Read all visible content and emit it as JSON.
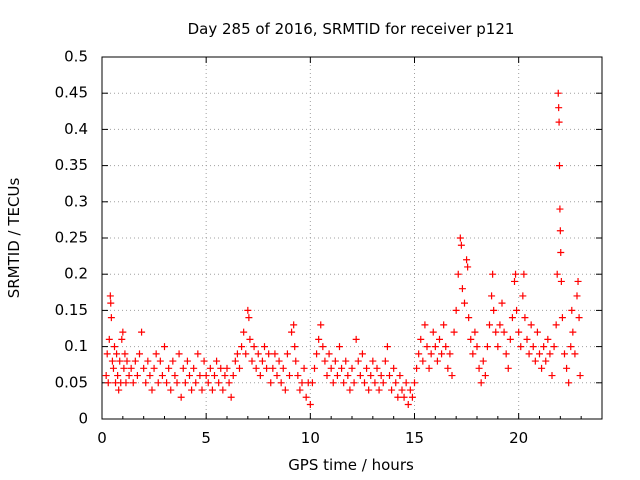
{
  "chart_data": {
    "type": "scatter",
    "title": "Day 285 of 2016, SRMTID for receiver p121",
    "xlabel": "GPS time / hours",
    "ylabel": "SRMTID / TECUs",
    "xlim": [
      0,
      24
    ],
    "ylim": [
      0,
      0.5
    ],
    "xticks": [
      0,
      5,
      10,
      15,
      20
    ],
    "yticks": [
      0,
      0.05,
      0.1,
      0.15,
      0.2,
      0.25,
      0.3,
      0.35,
      0.4,
      0.45,
      0.5
    ],
    "xtick_labels": [
      "0",
      "5",
      "10",
      "15",
      "20"
    ],
    "ytick_labels": [
      "0",
      "0.05",
      "0.1",
      "0.15",
      "0.2",
      "0.25",
      "0.3",
      "0.35",
      "0.4",
      "0.45",
      "0.5"
    ],
    "grid": true,
    "legend": "none",
    "marker_color": "#ff0000",
    "series": [
      {
        "name": "SRMTID",
        "marker": "+",
        "points": [
          [
            0.2,
            0.06
          ],
          [
            0.25,
            0.09
          ],
          [
            0.3,
            0.05
          ],
          [
            0.35,
            0.11
          ],
          [
            0.4,
            0.17
          ],
          [
            0.42,
            0.16
          ],
          [
            0.45,
            0.14
          ],
          [
            0.5,
            0.08
          ],
          [
            0.55,
            0.07
          ],
          [
            0.6,
            0.1
          ],
          [
            0.65,
            0.05
          ],
          [
            0.7,
            0.09
          ],
          [
            0.75,
            0.06
          ],
          [
            0.8,
            0.04
          ],
          [
            0.85,
            0.08
          ],
          [
            0.9,
            0.05
          ],
          [
            0.95,
            0.11
          ],
          [
            1.0,
            0.12
          ],
          [
            1.05,
            0.07
          ],
          [
            1.1,
            0.09
          ],
          [
            1.15,
            0.05
          ],
          [
            1.2,
            0.08
          ],
          [
            1.3,
            0.06
          ],
          [
            1.4,
            0.07
          ],
          [
            1.5,
            0.05
          ],
          [
            1.6,
            0.08
          ],
          [
            1.7,
            0.06
          ],
          [
            1.8,
            0.09
          ],
          [
            1.9,
            0.12
          ],
          [
            2.0,
            0.07
          ],
          [
            2.1,
            0.05
          ],
          [
            2.2,
            0.08
          ],
          [
            2.3,
            0.06
          ],
          [
            2.4,
            0.04
          ],
          [
            2.5,
            0.07
          ],
          [
            2.6,
            0.09
          ],
          [
            2.7,
            0.05
          ],
          [
            2.8,
            0.08
          ],
          [
            2.9,
            0.06
          ],
          [
            3.0,
            0.1
          ],
          [
            3.1,
            0.05
          ],
          [
            3.2,
            0.07
          ],
          [
            3.3,
            0.04
          ],
          [
            3.4,
            0.08
          ],
          [
            3.5,
            0.06
          ],
          [
            3.6,
            0.05
          ],
          [
            3.7,
            0.09
          ],
          [
            3.8,
            0.03
          ],
          [
            3.9,
            0.07
          ],
          [
            4.0,
            0.05
          ],
          [
            4.1,
            0.08
          ],
          [
            4.2,
            0.06
          ],
          [
            4.3,
            0.04
          ],
          [
            4.4,
            0.07
          ],
          [
            4.5,
            0.05
          ],
          [
            4.6,
            0.09
          ],
          [
            4.7,
            0.06
          ],
          [
            4.8,
            0.04
          ],
          [
            4.9,
            0.08
          ],
          [
            5.0,
            0.06
          ],
          [
            5.1,
            0.05
          ],
          [
            5.2,
            0.07
          ],
          [
            5.3,
            0.04
          ],
          [
            5.4,
            0.06
          ],
          [
            5.5,
            0.08
          ],
          [
            5.6,
            0.05
          ],
          [
            5.7,
            0.07
          ],
          [
            5.8,
            0.04
          ],
          [
            5.9,
            0.06
          ],
          [
            6.0,
            0.07
          ],
          [
            6.1,
            0.05
          ],
          [
            6.2,
            0.03
          ],
          [
            6.3,
            0.06
          ],
          [
            6.4,
            0.08
          ],
          [
            6.5,
            0.09
          ],
          [
            6.6,
            0.07
          ],
          [
            6.7,
            0.1
          ],
          [
            6.8,
            0.12
          ],
          [
            6.9,
            0.09
          ],
          [
            7.0,
            0.15
          ],
          [
            7.05,
            0.14
          ],
          [
            7.1,
            0.11
          ],
          [
            7.2,
            0.08
          ],
          [
            7.3,
            0.1
          ],
          [
            7.4,
            0.07
          ],
          [
            7.5,
            0.09
          ],
          [
            7.6,
            0.06
          ],
          [
            7.7,
            0.08
          ],
          [
            7.8,
            0.1
          ],
          [
            7.9,
            0.07
          ],
          [
            8.0,
            0.09
          ],
          [
            8.1,
            0.05
          ],
          [
            8.2,
            0.07
          ],
          [
            8.3,
            0.09
          ],
          [
            8.4,
            0.06
          ],
          [
            8.5,
            0.08
          ],
          [
            8.6,
            0.05
          ],
          [
            8.7,
            0.07
          ],
          [
            8.8,
            0.04
          ],
          [
            8.9,
            0.09
          ],
          [
            9.0,
            0.06
          ],
          [
            9.1,
            0.12
          ],
          [
            9.2,
            0.13
          ],
          [
            9.25,
            0.1
          ],
          [
            9.3,
            0.08
          ],
          [
            9.4,
            0.06
          ],
          [
            9.5,
            0.04
          ],
          [
            9.6,
            0.05
          ],
          [
            9.7,
            0.07
          ],
          [
            9.8,
            0.03
          ],
          [
            9.9,
            0.05
          ],
          [
            10.0,
            0.02
          ],
          [
            10.1,
            0.05
          ],
          [
            10.2,
            0.07
          ],
          [
            10.3,
            0.09
          ],
          [
            10.4,
            0.11
          ],
          [
            10.5,
            0.13
          ],
          [
            10.6,
            0.1
          ],
          [
            10.7,
            0.08
          ],
          [
            10.8,
            0.06
          ],
          [
            10.9,
            0.09
          ],
          [
            11.0,
            0.07
          ],
          [
            11.1,
            0.05
          ],
          [
            11.2,
            0.08
          ],
          [
            11.3,
            0.06
          ],
          [
            11.4,
            0.1
          ],
          [
            11.5,
            0.07
          ],
          [
            11.6,
            0.05
          ],
          [
            11.7,
            0.08
          ],
          [
            11.8,
            0.06
          ],
          [
            11.9,
            0.04
          ],
          [
            12.0,
            0.07
          ],
          [
            12.1,
            0.05
          ],
          [
            12.2,
            0.11
          ],
          [
            12.3,
            0.08
          ],
          [
            12.4,
            0.06
          ],
          [
            12.5,
            0.09
          ],
          [
            12.6,
            0.05
          ],
          [
            12.7,
            0.07
          ],
          [
            12.8,
            0.04
          ],
          [
            12.9,
            0.06
          ],
          [
            13.0,
            0.08
          ],
          [
            13.1,
            0.05
          ],
          [
            13.2,
            0.07
          ],
          [
            13.3,
            0.04
          ],
          [
            13.4,
            0.06
          ],
          [
            13.5,
            0.05
          ],
          [
            13.6,
            0.08
          ],
          [
            13.7,
            0.1
          ],
          [
            13.8,
            0.06
          ],
          [
            13.9,
            0.04
          ],
          [
            14.0,
            0.07
          ],
          [
            14.1,
            0.05
          ],
          [
            14.2,
            0.03
          ],
          [
            14.3,
            0.06
          ],
          [
            14.4,
            0.04
          ],
          [
            14.5,
            0.03
          ],
          [
            14.6,
            0.05
          ],
          [
            14.7,
            0.02
          ],
          [
            14.8,
            0.04
          ],
          [
            14.9,
            0.03
          ],
          [
            15.0,
            0.05
          ],
          [
            15.1,
            0.07
          ],
          [
            15.2,
            0.09
          ],
          [
            15.3,
            0.11
          ],
          [
            15.4,
            0.08
          ],
          [
            15.5,
            0.13
          ],
          [
            15.6,
            0.1
          ],
          [
            15.7,
            0.07
          ],
          [
            15.8,
            0.09
          ],
          [
            15.9,
            0.12
          ],
          [
            16.0,
            0.1
          ],
          [
            16.1,
            0.08
          ],
          [
            16.2,
            0.11
          ],
          [
            16.3,
            0.09
          ],
          [
            16.4,
            0.13
          ],
          [
            16.5,
            0.1
          ],
          [
            16.6,
            0.07
          ],
          [
            16.7,
            0.09
          ],
          [
            16.8,
            0.06
          ],
          [
            16.9,
            0.12
          ],
          [
            17.0,
            0.15
          ],
          [
            17.1,
            0.2
          ],
          [
            17.2,
            0.25
          ],
          [
            17.25,
            0.24
          ],
          [
            17.3,
            0.18
          ],
          [
            17.4,
            0.16
          ],
          [
            17.5,
            0.22
          ],
          [
            17.55,
            0.21
          ],
          [
            17.6,
            0.14
          ],
          [
            17.7,
            0.11
          ],
          [
            17.8,
            0.09
          ],
          [
            17.9,
            0.12
          ],
          [
            18.0,
            0.1
          ],
          [
            18.1,
            0.07
          ],
          [
            18.2,
            0.05
          ],
          [
            18.3,
            0.08
          ],
          [
            18.4,
            0.06
          ],
          [
            18.5,
            0.1
          ],
          [
            18.6,
            0.13
          ],
          [
            18.7,
            0.17
          ],
          [
            18.75,
            0.2
          ],
          [
            18.8,
            0.15
          ],
          [
            18.9,
            0.12
          ],
          [
            19.0,
            0.1
          ],
          [
            19.1,
            0.13
          ],
          [
            19.2,
            0.16
          ],
          [
            19.3,
            0.12
          ],
          [
            19.4,
            0.09
          ],
          [
            19.5,
            0.07
          ],
          [
            19.6,
            0.11
          ],
          [
            19.7,
            0.14
          ],
          [
            19.8,
            0.19
          ],
          [
            19.85,
            0.2
          ],
          [
            19.9,
            0.15
          ],
          [
            20.0,
            0.12
          ],
          [
            20.1,
            0.1
          ],
          [
            20.2,
            0.17
          ],
          [
            20.25,
            0.2
          ],
          [
            20.3,
            0.14
          ],
          [
            20.4,
            0.11
          ],
          [
            20.5,
            0.09
          ],
          [
            20.6,
            0.13
          ],
          [
            20.7,
            0.1
          ],
          [
            20.8,
            0.08
          ],
          [
            20.9,
            0.12
          ],
          [
            21.0,
            0.09
          ],
          [
            21.1,
            0.07
          ],
          [
            21.2,
            0.1
          ],
          [
            21.3,
            0.08
          ],
          [
            21.4,
            0.11
          ],
          [
            21.5,
            0.09
          ],
          [
            21.6,
            0.06
          ],
          [
            21.7,
            0.1
          ],
          [
            21.8,
            0.13
          ],
          [
            21.85,
            0.2
          ],
          [
            21.9,
            0.45
          ],
          [
            21.92,
            0.43
          ],
          [
            21.94,
            0.41
          ],
          [
            21.96,
            0.35
          ],
          [
            21.98,
            0.29
          ],
          [
            22.0,
            0.26
          ],
          [
            22.02,
            0.23
          ],
          [
            22.05,
            0.19
          ],
          [
            22.1,
            0.14
          ],
          [
            22.2,
            0.09
          ],
          [
            22.3,
            0.07
          ],
          [
            22.4,
            0.05
          ],
          [
            22.5,
            0.1
          ],
          [
            22.55,
            0.15
          ],
          [
            22.6,
            0.12
          ],
          [
            22.7,
            0.09
          ],
          [
            22.8,
            0.17
          ],
          [
            22.85,
            0.19
          ],
          [
            22.9,
            0.14
          ],
          [
            22.95,
            0.06
          ]
        ]
      }
    ]
  }
}
